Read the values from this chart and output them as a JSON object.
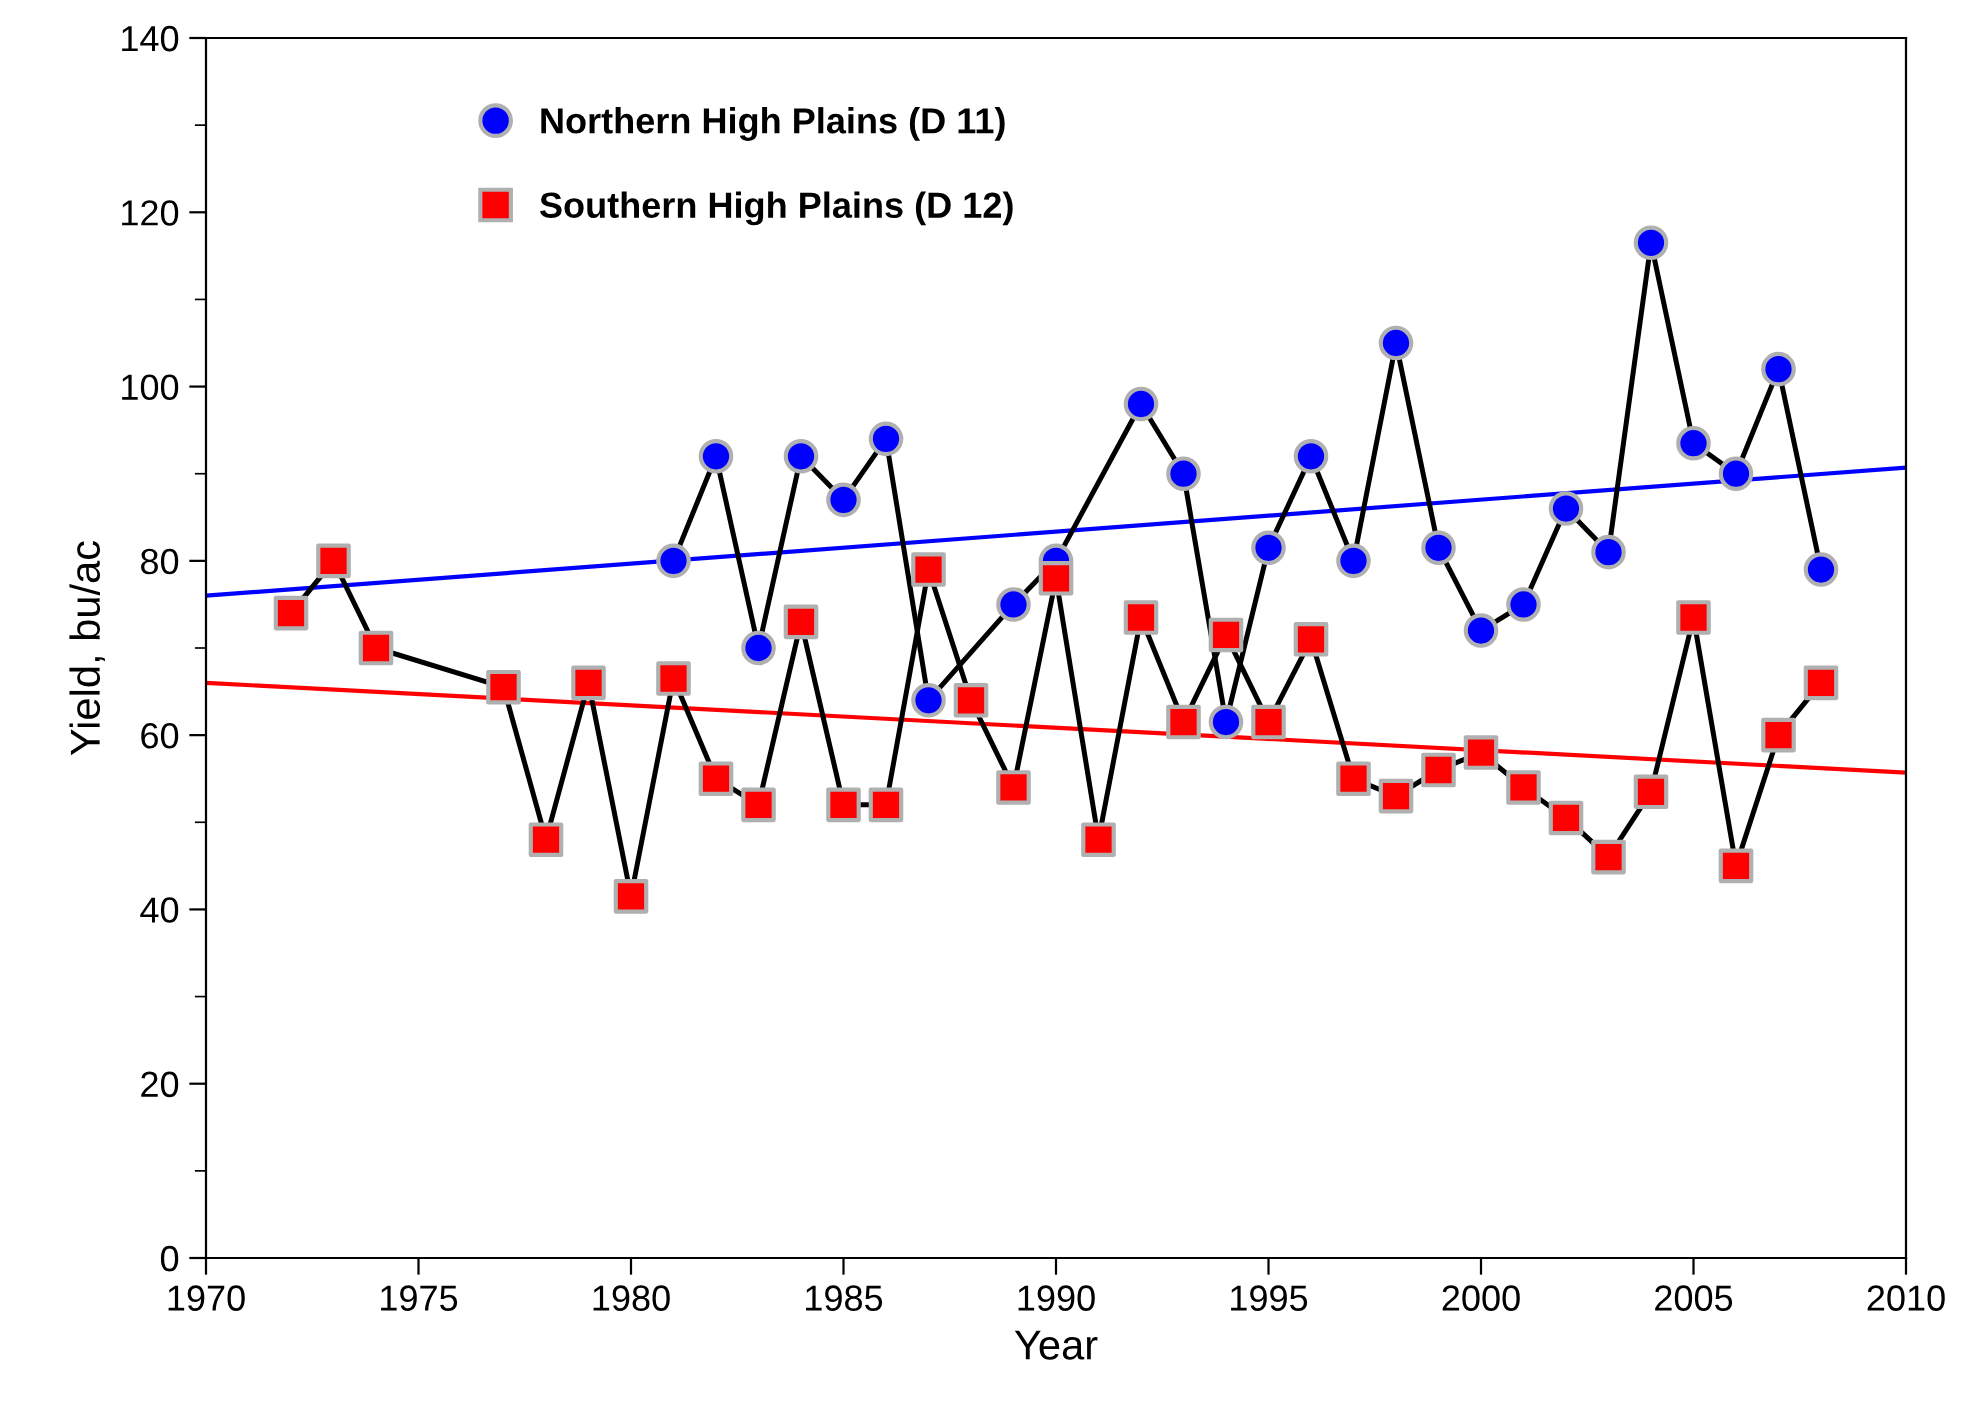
{
  "chart_data": {
    "type": "line",
    "xlabel": "Year",
    "ylabel": "Yield, bu/ac",
    "xlim": [
      1970,
      2010
    ],
    "xticks": [
      1970,
      1975,
      1980,
      1985,
      1990,
      1995,
      2000,
      2005,
      2010
    ],
    "ylim": [
      0,
      140
    ],
    "yticks": [
      0,
      20,
      40,
      60,
      80,
      100,
      120,
      140
    ],
    "grid": false,
    "legend": "top left",
    "series": [
      {
        "name": "Northern High Plains (D 11)",
        "color": "#0000ff",
        "marker": "circle",
        "x": [
          1981,
          1982,
          1983,
          1984,
          1985,
          1986,
          1987,
          1989,
          1990,
          1992,
          1993,
          1994,
          1995,
          1996,
          1997,
          1998,
          1999,
          2000,
          2001,
          2002,
          2003,
          2004,
          2005,
          2006,
          2007,
          2008
        ],
        "values": [
          80,
          92,
          70,
          92,
          87,
          94,
          64,
          75,
          80,
          98,
          90,
          61.5,
          81.5,
          92,
          80,
          105,
          81.5,
          72,
          75,
          86,
          81,
          116.5,
          93.5,
          90,
          102,
          79
        ]
      },
      {
        "name": "Southern High Plains (D 12)",
        "color": "#ff0000",
        "marker": "square",
        "x": [
          1972,
          1973,
          1974,
          1977,
          1978,
          1979,
          1980,
          1981,
          1982,
          1983,
          1984,
          1985,
          1986,
          1987,
          1988,
          1989,
          1990,
          1991,
          1992,
          1993,
          1994,
          1995,
          1996,
          1997,
          1998,
          1999,
          2000,
          2001,
          2002,
          2003,
          2004,
          2005,
          2006,
          2007,
          2008
        ],
        "values": [
          74,
          80,
          70,
          65.5,
          48,
          66,
          41.5,
          66.5,
          55,
          52,
          73,
          52,
          52,
          79,
          64,
          54,
          78,
          48,
          73.5,
          61.5,
          71.5,
          61.5,
          71,
          55,
          53,
          56,
          58,
          54,
          50.5,
          46,
          53.5,
          73.5,
          45,
          60,
          66
        ]
      },
      {
        "color": "#0000ff",
        "marker": "none",
        "x": [
          1970,
          2010
        ],
        "values": [
          76,
          90.7
        ]
      },
      {
        "color": "#ff0000",
        "marker": "none",
        "x": [
          1970,
          2010
        ],
        "values": [
          66,
          55.7
        ]
      }
    ]
  }
}
